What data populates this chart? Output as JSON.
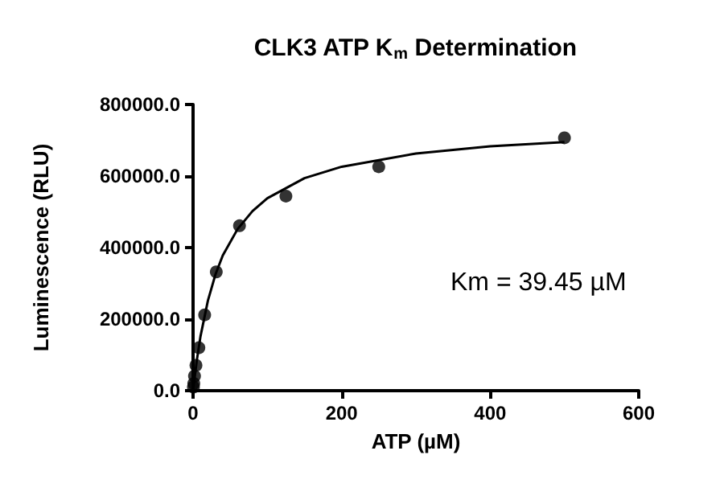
{
  "chart_data": {
    "type": "scatter",
    "title": "CLK3 ATP K$_{m}$ Determination",
    "xlabel": "ATP (µM)",
    "ylabel": "Luminescence (RLU)",
    "annotations": [
      "Km = 39.45 µM"
    ],
    "xlim": [
      0,
      600
    ],
    "xticks": [
      0,
      200,
      400,
      600
    ],
    "ylim": [
      0,
      800000
    ],
    "yticks": [
      {
        "value": 0,
        "label": "0.0"
      },
      {
        "value": 200000,
        "label": "200000.0"
      },
      {
        "value": 400000,
        "label": "400000.0"
      },
      {
        "value": 600000,
        "label": "600000.0"
      },
      {
        "value": 800000,
        "label": "800000.0"
      }
    ],
    "grid": false,
    "series": [
      {
        "color": "#000000",
        "marker": "circle",
        "x": [
          500,
          250,
          125,
          62.5,
          31.25,
          15.6,
          7.8,
          3.9,
          1.95,
          0.98,
          0.49
        ],
        "values": [
          707000,
          626000,
          544000,
          461000,
          332000,
          212000,
          120000,
          71000,
          41000,
          20000,
          10000
        ]
      },
      {
        "type": "line",
        "color": "#000000",
        "line_style": "solid",
        "marker": "none",
        "x": [
          0,
          5,
          10,
          20,
          30,
          40,
          60,
          80,
          100,
          150,
          200,
          300,
          400,
          500
        ],
        "values": [
          0,
          84000,
          152000,
          252000,
          324000,
          378000,
          452000,
          502000,
          538000,
          594000,
          626000,
          663000,
          683000,
          695000
        ]
      }
    ]
  }
}
